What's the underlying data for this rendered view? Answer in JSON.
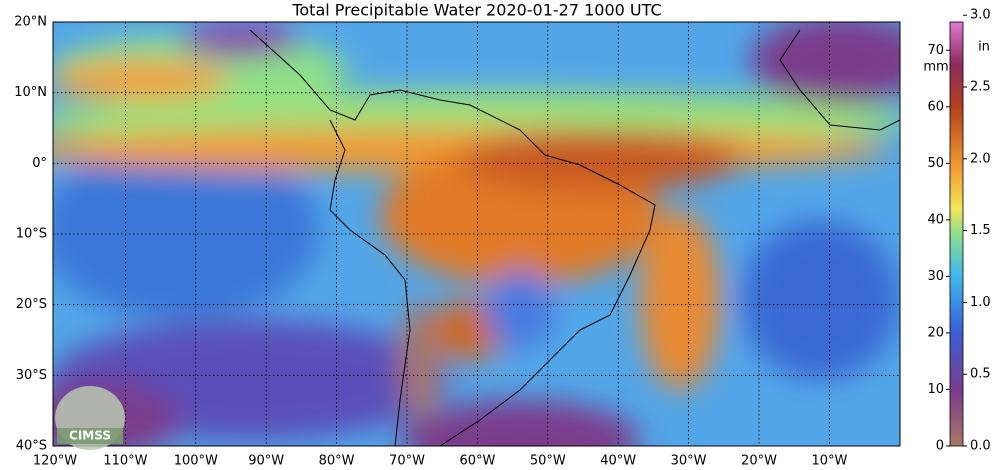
{
  "title": "Total Precipitable Water  2020-01-27 1000 UTC",
  "map": {
    "lat_labels": [
      "20°N",
      "10°N",
      "0°",
      "10°S",
      "20°S",
      "30°S",
      "40°S"
    ],
    "lon_labels": [
      "120°W",
      "110°W",
      "100°W",
      "90°W",
      "80°W",
      "70°W",
      "60°W",
      "50°W",
      "40°W",
      "30°W",
      "20°W",
      "10°W"
    ]
  },
  "colorbar": {
    "mm_label": "mm",
    "in_label": "in",
    "ylim": [
      0,
      75
    ],
    "yticks": [
      0,
      10,
      20,
      30,
      40,
      50,
      60,
      70
    ],
    "y2lim": [
      0,
      2.9528
    ],
    "y2ticks": [
      {
        "value": 0,
        "label": "0.0"
      },
      {
        "value": 0.5,
        "label": "0.5"
      },
      {
        "value": 1,
        "label": "1.0"
      },
      {
        "value": 1.5,
        "label": "1.5"
      },
      {
        "value": 2,
        "label": "2.0"
      },
      {
        "value": 2.5,
        "label": "2.5"
      },
      {
        "value": 3,
        "label": "3.0"
      }
    ]
  },
  "logo": "CIMSS"
}
